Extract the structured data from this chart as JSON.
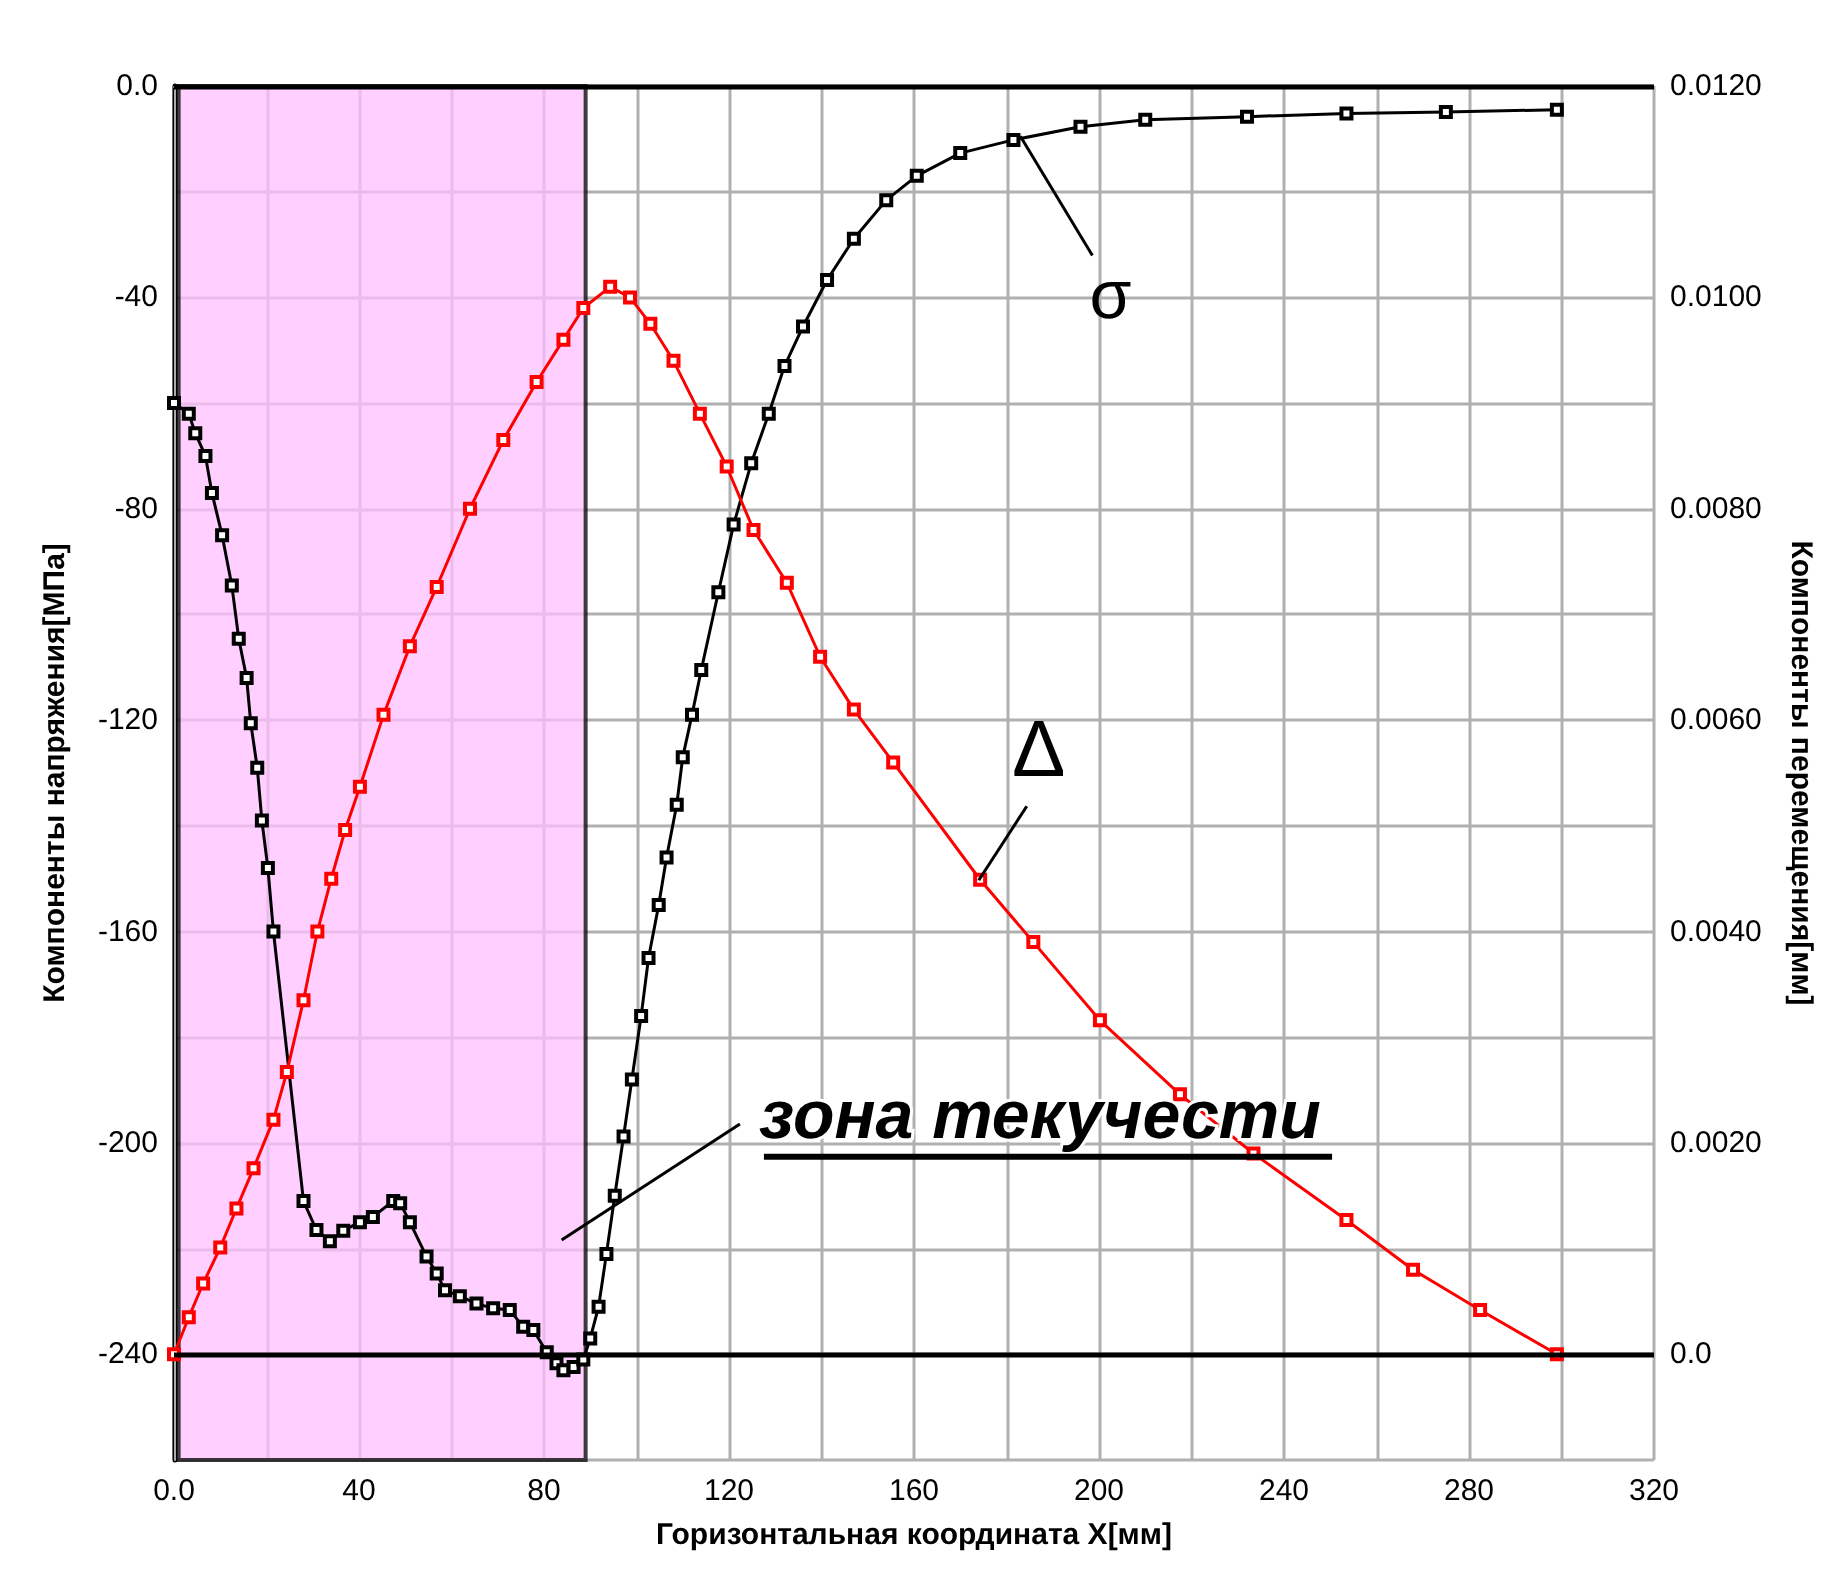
{
  "chart_data": {
    "type": "line",
    "xlabel": "Горизонтальная координата X[мм]",
    "ylabel": "Компоненты напряжения[МПа]",
    "y2label": "Компоненты перемещения[мм]",
    "xlim": [
      0,
      320
    ],
    "xticks": [
      {
        "value": 0,
        "label": "0.0"
      },
      {
        "value": 20,
        "label": null
      },
      40,
      {
        "value": 60,
        "label": null
      },
      80,
      {
        "value": 100,
        "label": null
      },
      120,
      {
        "value": 140,
        "label": null
      },
      160,
      {
        "value": 180,
        "label": null
      },
      200,
      {
        "value": 220,
        "label": null
      },
      240,
      {
        "value": 260,
        "label": null
      },
      280,
      {
        "value": 300,
        "label": null
      },
      320
    ],
    "ylim": [
      -260,
      0
    ],
    "yticks": [
      {
        "value": -260,
        "label": null
      },
      -240,
      {
        "value": -220,
        "label": null
      },
      -200,
      {
        "value": -180,
        "label": null
      },
      -160,
      {
        "value": -140,
        "label": null
      },
      -120,
      {
        "value": -100,
        "label": null
      },
      -80,
      {
        "value": -60,
        "label": null
      },
      -40,
      {
        "value": -20,
        "label": null
      },
      {
        "value": 0,
        "label": "0.0"
      }
    ],
    "y2lim": [
      -0.001,
      0.012
    ],
    "y2ticks": [
      {
        "value": -0.001,
        "label": null
      },
      {
        "value": 0,
        "label": "0.0"
      },
      {
        "value": 0.001,
        "label": null
      },
      {
        "value": 0.002,
        "label": "0.0020"
      },
      {
        "value": 0.003,
        "label": null
      },
      {
        "value": 0.004,
        "label": "0.0040"
      },
      {
        "value": 0.005,
        "label": null
      },
      {
        "value": 0.006,
        "label": "0.0060"
      },
      {
        "value": 0.007,
        "label": null
      },
      {
        "value": 0.008,
        "label": "0.0080"
      },
      {
        "value": 0.009,
        "label": null
      },
      {
        "value": 0.01,
        "label": "0.0100"
      },
      {
        "value": 0.011,
        "label": null
      },
      {
        "value": 0.012,
        "label": "0.0120"
      }
    ],
    "grid": true,
    "marker": "square",
    "line_style": "solid",
    "series": [
      {
        "color": "#000000",
        "x": [
          0,
          3.2,
          4.6,
          6.8,
          8.2,
          10.4,
          12.5,
          14,
          15.7,
          16.6,
          18,
          19,
          20.3,
          21.5,
          28,
          30.8,
          33.7,
          36.6,
          40.2,
          43,
          47.4,
          48.9,
          51,
          54.6,
          56.8,
          58.6,
          61.8,
          65.4,
          69,
          72.6,
          75.5,
          77.7,
          80.6,
          82.7,
          84.2,
          86.4,
          88.5,
          90,
          91.8,
          93.5,
          95.3,
          97.2,
          99,
          101,
          102.6,
          104.8,
          106.5,
          108.7,
          110,
          112,
          114,
          117.7,
          121,
          124.8,
          128.6,
          132,
          136,
          141.2,
          147,
          154,
          160.6,
          170,
          181.5,
          196,
          210,
          232,
          253.5,
          275,
          299
        ],
        "values": [
          -60,
          -62,
          -65.7,
          -70,
          -77,
          -85,
          -94.5,
          -104.6,
          -112,
          -120.6,
          -129,
          -139,
          -148,
          -160,
          -211,
          -216.5,
          -218.6,
          -216.6,
          -215,
          -214,
          -211,
          -211.4,
          -215,
          -221.5,
          -224.7,
          -227.9,
          -229,
          -230.4,
          -231.3,
          -231.6,
          -234.8,
          -235.4,
          -239.6,
          -241.7,
          -243,
          -242.4,
          -241,
          -237,
          -231,
          -221,
          -210,
          -198.8,
          -188,
          -176,
          -165,
          -155,
          -146,
          -136,
          -127,
          -119,
          -110.5,
          -95.8,
          -83,
          -71.4,
          -62,
          -53,
          -45.5,
          -36.7,
          -28.9,
          -21.6,
          -17,
          -12.7,
          -10.2,
          -7.7,
          -6.4,
          -5.8,
          -5.2,
          -4.9,
          -4.5
        ]
      },
      {
        "color": "#ff0000",
        "axis": "y2",
        "x": [
          0,
          3.2,
          6.3,
          10,
          13.5,
          17.2,
          21.5,
          24.4,
          28,
          31,
          34,
          37,
          40.2,
          45.3,
          51,
          56.8,
          64,
          71.2,
          78.4,
          84.2,
          88.5,
          94.3,
          98.6,
          103,
          108,
          113.7,
          119.5,
          125.3,
          132.5,
          139.7,
          147,
          155.5,
          174.3,
          185.8,
          200.2,
          217.5,
          233.4,
          253.5,
          267.9,
          282.4,
          299
        ],
        "values": [
          0,
          0.00035,
          0.00067,
          0.00101,
          0.00138,
          0.00176,
          0.00222,
          0.00267,
          0.00335,
          0.004,
          0.0045,
          0.00496,
          0.00537,
          0.00605,
          0.0067,
          0.00726,
          0.008,
          0.00865,
          0.0092,
          0.0096,
          0.0099,
          0.0101,
          0.01,
          0.00975,
          0.0094,
          0.0089,
          0.0084,
          0.0078,
          0.0073,
          0.0066,
          0.0061,
          0.0056,
          0.00449,
          0.0039,
          0.00316,
          0.00246,
          0.0019,
          0.00127,
          0.0008,
          0.00042,
          0
        ]
      }
    ],
    "bands": [
      {
        "axis": "x",
        "from": 1,
        "to": 89,
        "color": "#ffc0ff"
      }
    ],
    "ref_lines": [
      {
        "axis": "y",
        "value": -240
      },
      {
        "axis": "y",
        "value": 0
      }
    ],
    "annotations": [
      {
        "text": "σ",
        "x": 183,
        "y": -9.5
      },
      {
        "text": "Δ",
        "x": 174,
        "y": -150.3
      },
      "зона текучести"
    ]
  }
}
